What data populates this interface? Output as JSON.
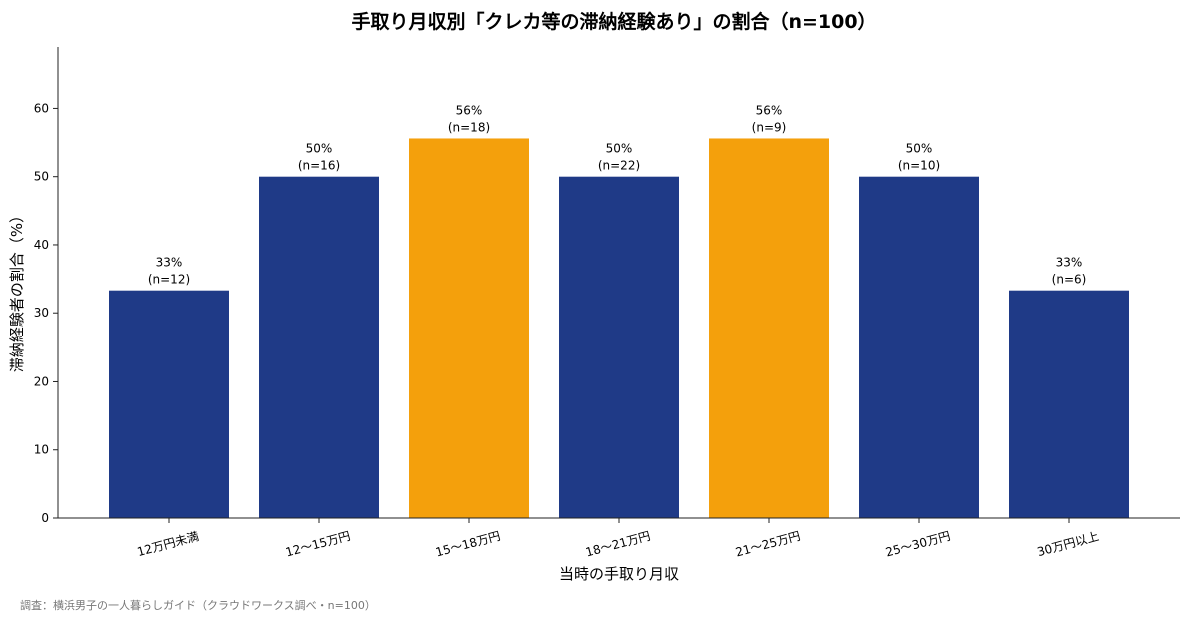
{
  "chart_data": {
    "type": "bar",
    "title": "手取り月収別「クレカ等の滞納経験あり」の割合（n=100）",
    "xlabel": "当時の手取り月収",
    "ylabel": "滞納経験者の割合（%）",
    "ylim": [
      0,
      69
    ],
    "yticks": [
      0,
      10,
      20,
      30,
      40,
      50,
      60
    ],
    "grid": false,
    "categories": [
      "12万円未満",
      "12〜15万円",
      "15〜18万円",
      "18〜21万円",
      "21〜25万円",
      "25〜30万円",
      "30万円以上"
    ],
    "values": [
      33.3,
      50,
      55.6,
      50,
      55.6,
      50,
      33.3
    ],
    "value_labels": [
      "33%",
      "50%",
      "56%",
      "50%",
      "56%",
      "50%",
      "33%"
    ],
    "n_labels": [
      "(n=12)",
      "(n=16)",
      "(n=18)",
      "(n=22)",
      "(n=9)",
      "(n=10)",
      "(n=6)"
    ],
    "highlighted": [
      false,
      false,
      true,
      false,
      true,
      false,
      false
    ],
    "colors": {
      "base": "#1f3a87",
      "highlight": "#f4a00c",
      "axis": "#222222",
      "source": "#777777"
    }
  },
  "source_note": "調査：横浜男子の一人暮らしガイド（クラウドワークス調べ・n=100）"
}
